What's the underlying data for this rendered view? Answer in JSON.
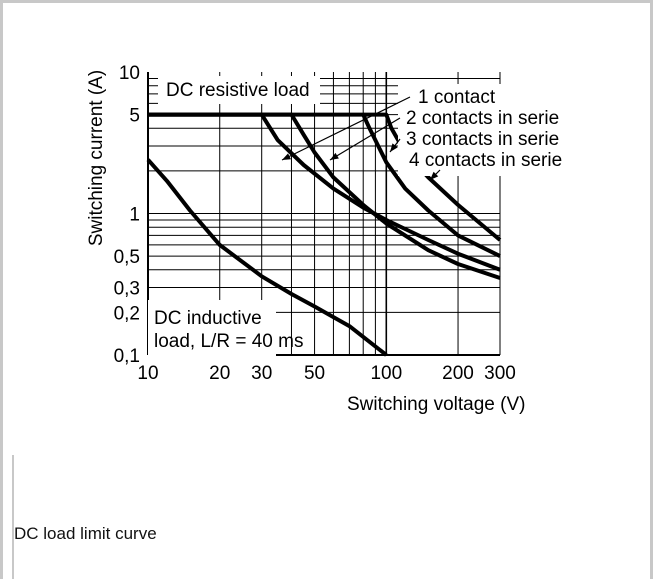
{
  "caption": "DC load limit curve",
  "chart_data": {
    "type": "line",
    "title": "",
    "xlabel": "Switching voltage (V)",
    "ylabel": "Switching current (A)",
    "xscale": "log",
    "yscale": "log",
    "xlim": [
      10,
      300
    ],
    "ylim": [
      0.1,
      10
    ],
    "grid": true,
    "xticks": [
      10,
      20,
      30,
      50,
      100,
      200,
      300
    ],
    "xtick_labels": [
      "10",
      "20",
      "30",
      "50",
      "100",
      "200",
      "300"
    ],
    "yticks": [
      0.1,
      0.2,
      0.3,
      0.5,
      1,
      5,
      10
    ],
    "ytick_labels": [
      "0,1",
      "0,2",
      "0,3",
      "0,5",
      "1",
      "5",
      "10"
    ],
    "region_labels": {
      "resistive": "DC resistive load",
      "inductive_line1": "DC inductive",
      "inductive_line2": "load, L/R = 40 ms"
    },
    "series": [
      {
        "name": "1 contact",
        "x": [
          10,
          24,
          30,
          35,
          45,
          60,
          80,
          100,
          150,
          200,
          300
        ],
        "y": [
          5,
          5,
          5,
          3.3,
          2.2,
          1.5,
          1.1,
          0.9,
          0.65,
          0.52,
          0.4
        ]
      },
      {
        "name": "2 contacts in serie",
        "x": [
          10,
          40,
          45,
          50,
          60,
          80,
          100,
          150,
          200,
          300
        ],
        "y": [
          5,
          5,
          3.6,
          2.7,
          1.8,
          1.15,
          0.85,
          0.55,
          0.44,
          0.35
        ]
      },
      {
        "name": "3 contacts in serie",
        "x": [
          10,
          80,
          85,
          100,
          120,
          150,
          200,
          300
        ],
        "y": [
          5,
          5,
          4,
          2.3,
          1.5,
          1.05,
          0.7,
          0.5
        ]
      },
      {
        "name": "4 contacts in serie",
        "x": [
          80,
          100,
          105,
          120,
          150,
          200,
          300
        ],
        "y": [
          5,
          5,
          4,
          2.7,
          1.8,
          1.15,
          0.65
        ]
      },
      {
        "name": "DC inductive load, L/R = 40 ms",
        "x": [
          10,
          12,
          15,
          20,
          30,
          40,
          50,
          70,
          100
        ],
        "y": [
          2.4,
          1.7,
          1.05,
          0.6,
          0.36,
          0.27,
          0.22,
          0.16,
          0.1
        ]
      }
    ]
  }
}
